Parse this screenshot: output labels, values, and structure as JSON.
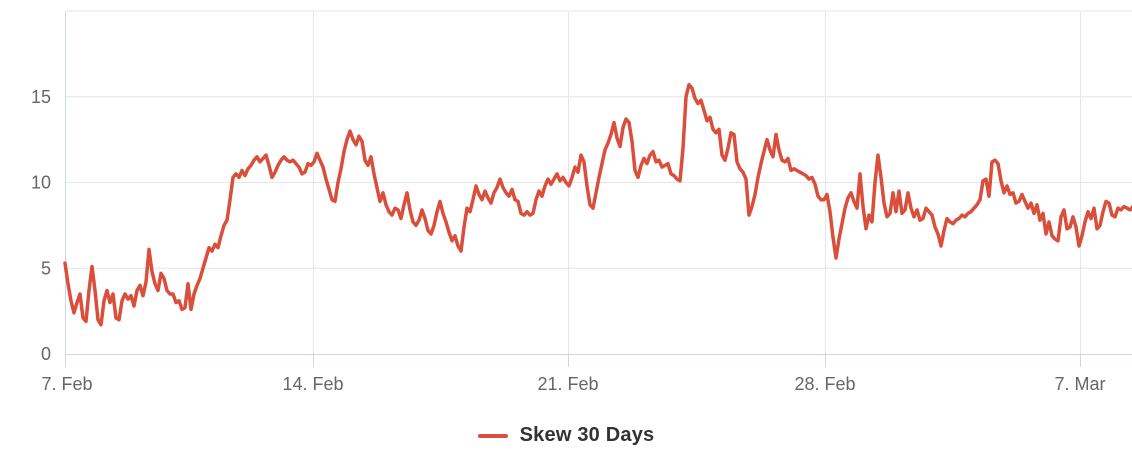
{
  "chart": {
    "background_color": "#ffffff",
    "grid_color": "#e6e6e6",
    "axis_line_color": "#ccd6eb",
    "axis_label_color": "#666666",
    "legend_text_color": "#333333"
  },
  "legend": {
    "label": "Skew 30 Days"
  },
  "chart_data": {
    "type": "line",
    "title": "",
    "xlabel": "",
    "ylabel": "",
    "grid": true,
    "legend_position": "bottom-center",
    "y_ticks": [
      0,
      5,
      10,
      15
    ],
    "y_tick_labels": [
      "0",
      "5",
      "10",
      "15"
    ],
    "ylim": [
      0,
      19.9
    ],
    "x_tick_labels": [
      "7. Feb",
      "14. Feb",
      "21. Feb",
      "28. Feb",
      "7. Mar"
    ],
    "x_range_note": "7. Feb through ~8. Mar, uniformly sampled (~2 hour resolution)",
    "series": [
      {
        "name": "Skew 30 Days",
        "color": "#d94f3b",
        "values": [
          5.3,
          4.1,
          3.1,
          2.4,
          3.0,
          3.5,
          2.1,
          1.9,
          3.7,
          5.1,
          3.7,
          2.0,
          1.7,
          3.1,
          3.7,
          3.0,
          3.5,
          2.1,
          2.0,
          3.1,
          3.5,
          3.2,
          3.4,
          2.8,
          3.7,
          4.0,
          3.4,
          4.2,
          6.1,
          4.8,
          4.1,
          3.7,
          4.7,
          4.4,
          3.7,
          3.5,
          3.5,
          3.0,
          3.1,
          2.6,
          2.7,
          4.1,
          2.6,
          3.5,
          4.0,
          4.4,
          5.0,
          5.6,
          6.2,
          6.0,
          6.4,
          6.2,
          6.9,
          7.5,
          7.8,
          9.0,
          10.3,
          10.5,
          10.3,
          10.7,
          10.4,
          10.8,
          11.0,
          11.3,
          11.5,
          11.2,
          11.4,
          11.6,
          11.0,
          10.3,
          10.6,
          11.0,
          11.3,
          11.5,
          11.3,
          11.2,
          11.3,
          11.1,
          10.9,
          10.5,
          10.6,
          11.1,
          11.0,
          11.2,
          11.7,
          11.3,
          10.9,
          10.2,
          9.6,
          9.0,
          8.9,
          10.0,
          10.8,
          11.8,
          12.5,
          13.0,
          12.5,
          12.2,
          12.7,
          12.4,
          11.3,
          11.0,
          11.5,
          10.5,
          9.7,
          8.9,
          9.4,
          8.7,
          8.3,
          8.1,
          8.5,
          8.4,
          7.9,
          8.7,
          9.4,
          8.4,
          7.7,
          7.5,
          7.8,
          8.4,
          7.9,
          7.2,
          7.0,
          7.5,
          8.3,
          8.9,
          8.2,
          7.7,
          7.1,
          6.6,
          6.9,
          6.3,
          6.0,
          7.4,
          8.5,
          8.3,
          9.0,
          9.8,
          9.3,
          9.0,
          9.5,
          9.1,
          8.8,
          9.4,
          9.7,
          10.2,
          9.7,
          9.4,
          9.2,
          9.6,
          9.0,
          8.9,
          8.2,
          8.1,
          8.3,
          8.1,
          8.2,
          9.0,
          9.5,
          9.2,
          9.8,
          10.2,
          9.9,
          10.2,
          10.5,
          10.1,
          10.3,
          10.0,
          9.8,
          10.3,
          10.9,
          10.6,
          11.6,
          11.2,
          9.8,
          8.7,
          8.5,
          9.4,
          10.3,
          11.1,
          11.9,
          12.3,
          12.8,
          13.5,
          12.6,
          12.1,
          13.2,
          13.7,
          13.5,
          12.4,
          10.7,
          10.3,
          11.0,
          11.4,
          11.1,
          11.6,
          11.8,
          11.2,
          11.3,
          10.9,
          11.0,
          11.1,
          10.5,
          10.4,
          10.2,
          10.1,
          12.0,
          15.0,
          15.7,
          15.5,
          14.9,
          14.6,
          14.8,
          14.2,
          13.6,
          13.8,
          13.1,
          12.9,
          13.1,
          11.6,
          11.3,
          12.0,
          12.9,
          12.8,
          11.2,
          10.8,
          10.6,
          10.2,
          8.1,
          8.6,
          9.3,
          10.3,
          11.1,
          11.8,
          12.5,
          11.9,
          11.5,
          12.8,
          11.9,
          11.3,
          11.2,
          11.4,
          10.7,
          10.8,
          10.7,
          10.6,
          10.5,
          10.4,
          10.2,
          10.3,
          9.9,
          9.2,
          9.0,
          9.0,
          9.3,
          8.3,
          6.8,
          5.6,
          6.7,
          7.6,
          8.5,
          9.1,
          9.4,
          8.9,
          8.5,
          10.5,
          8.6,
          7.3,
          8.1,
          7.7,
          10.0,
          11.6,
          10.3,
          8.8,
          8.0,
          8.2,
          9.4,
          8.3,
          9.5,
          8.2,
          8.4,
          9.4,
          8.5,
          8.0,
          8.4,
          7.8,
          7.9,
          8.5,
          8.3,
          8.1,
          7.4,
          7.0,
          6.3,
          7.2,
          7.9,
          7.7,
          7.6,
          7.8,
          7.9,
          8.1,
          8.0,
          8.2,
          8.3,
          8.5,
          8.7,
          9.0,
          10.1,
          10.2,
          9.2,
          11.2,
          11.3,
          11.1,
          10.1,
          9.4,
          9.8,
          9.3,
          9.4,
          8.8,
          8.9,
          9.3,
          8.9,
          8.5,
          8.8,
          8.2,
          8.7,
          7.8,
          8.2,
          7.0,
          7.7,
          6.9,
          6.7,
          6.6,
          8.0,
          8.4,
          7.3,
          7.4,
          8.0,
          7.4,
          6.3,
          6.9,
          7.7,
          8.3,
          7.9,
          8.5,
          7.3,
          7.5,
          8.3,
          8.9,
          8.8,
          8.1,
          8.0,
          8.5,
          8.4,
          8.6,
          8.5,
          8.4,
          8.6
        ]
      }
    ]
  }
}
